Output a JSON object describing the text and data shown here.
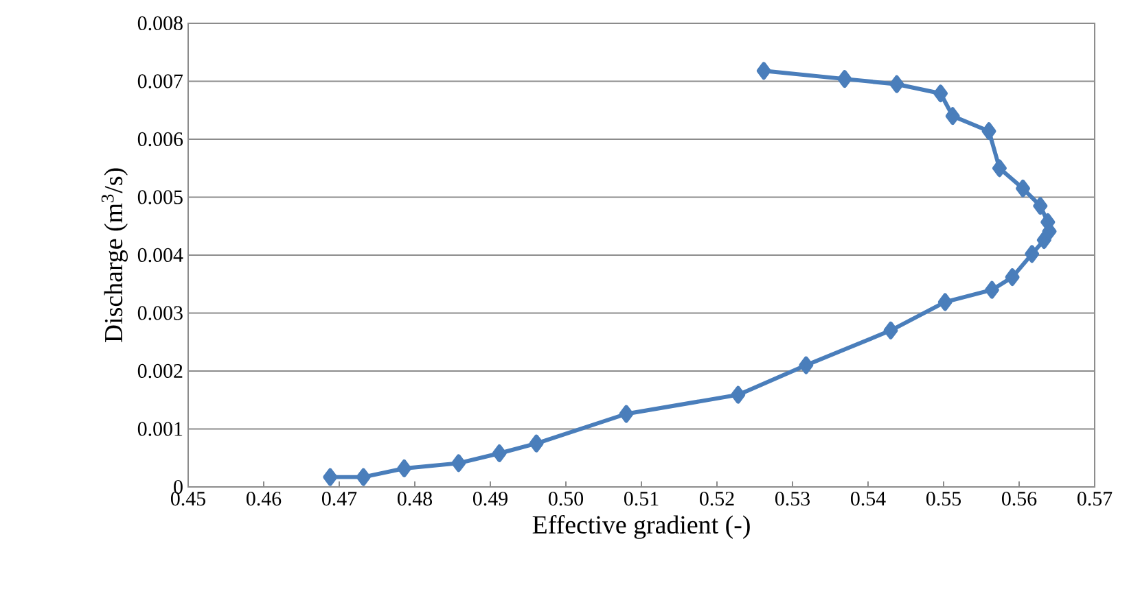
{
  "chart_data": {
    "type": "line",
    "xlabel": "Effective gradient (-)",
    "ylabel": "Discharge (m$^{3}$/s)",
    "x": [
      0.4688,
      0.4732,
      0.4786,
      0.4858,
      0.4912,
      0.4961,
      0.508,
      0.5228,
      0.5318,
      0.543,
      0.5502,
      0.5564,
      0.5591,
      0.5617,
      0.5633,
      0.564,
      0.5638,
      0.5628,
      0.5605,
      0.5574,
      0.556,
      0.5512,
      0.5496,
      0.5438,
      0.5369,
      0.5262
    ],
    "series": [
      {
        "color": "#4a7ebb",
        "values": [
          0.00017,
          0.00017,
          0.00032,
          0.00041,
          0.00058,
          0.00075,
          0.00126,
          0.00159,
          0.0021,
          0.0027,
          0.00319,
          0.0034,
          0.00362,
          0.00402,
          0.00426,
          0.00441,
          0.00457,
          0.00485,
          0.00515,
          0.0055,
          0.00614,
          0.0064,
          0.00679,
          0.00695,
          0.00704,
          0.00718
        ]
      }
    ],
    "xlim": [
      0.45,
      0.57
    ],
    "ylim": [
      0,
      0.008
    ],
    "xticks": [
      {
        "value": 0.45,
        "label": "0.45"
      },
      {
        "value": 0.46,
        "label": "0.46"
      },
      {
        "value": 0.47,
        "label": "0.47"
      },
      {
        "value": 0.48,
        "label": "0.48"
      },
      {
        "value": 0.49,
        "label": "0.49"
      },
      {
        "value": 0.5,
        "label": "0.50"
      },
      {
        "value": 0.51,
        "label": "0.51"
      },
      {
        "value": 0.52,
        "label": "0.52"
      },
      {
        "value": 0.53,
        "label": "0.53"
      },
      {
        "value": 0.54,
        "label": "0.54"
      },
      {
        "value": 0.55,
        "label": "0.55"
      },
      {
        "value": 0.56,
        "label": "0.56"
      },
      {
        "value": 0.57,
        "label": "0.57"
      }
    ],
    "yticks": [
      0,
      {
        "value": 0.001,
        "label": "0.001"
      },
      {
        "value": 0.002,
        "label": "0.002"
      },
      {
        "value": 0.003,
        "label": "0.003"
      },
      {
        "value": 0.004,
        "label": "0.004"
      },
      {
        "value": 0.005,
        "label": "0.005"
      },
      {
        "value": 0.006,
        "label": "0.006"
      },
      {
        "value": 0.007,
        "label": "0.007"
      },
      {
        "value": 0.008,
        "label": "0.008"
      }
    ],
    "grid": "y",
    "marker": "diamond",
    "line_style": "solid"
  }
}
